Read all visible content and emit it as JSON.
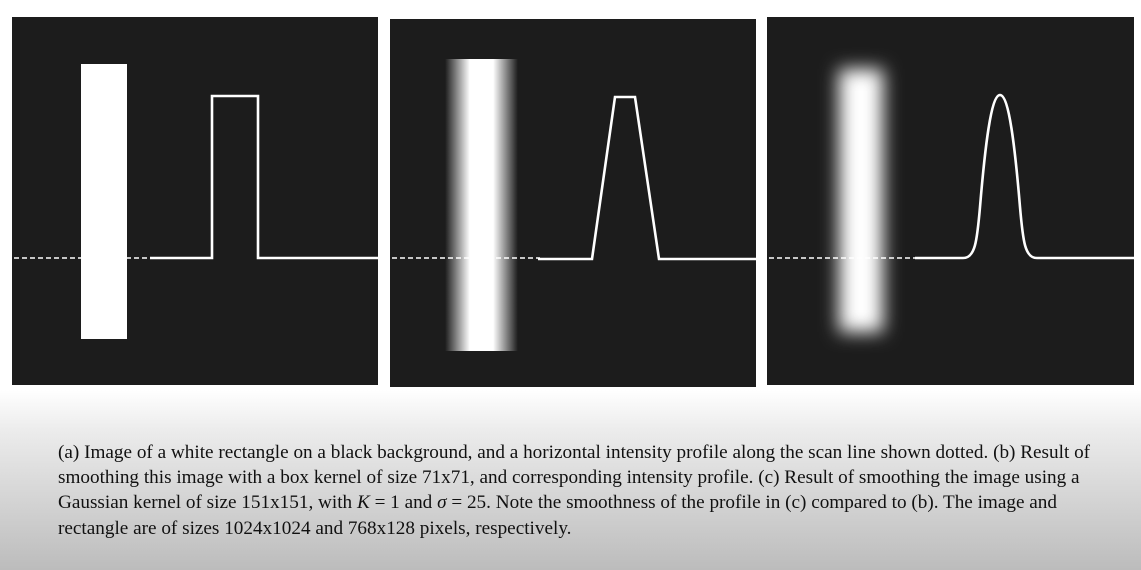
{
  "figure": {
    "panels": [
      {
        "id": "a",
        "description_key": "sharp rectangle",
        "profile": "step"
      },
      {
        "id": "b",
        "description_key": "box-smoothed rectangle",
        "profile": "trapezoid"
      },
      {
        "id": "c",
        "description_key": "gaussian-smoothed rectangle",
        "profile": "bell"
      }
    ],
    "colors": {
      "panel_background": "#1c1c1c",
      "foreground": "#ffffff"
    }
  },
  "caption": {
    "part1": "(a) Image of a white rectangle on a black background, and a horizontal intensity profile along the scan line shown dotted. (b) Result of smoothing this image with a box kernel of size 71x71, and corresponding intensity profile. (c) Result of smoothing the image using a Gaussian kernel of size 151x151, with ",
    "k_symbol": "K",
    "part2": " = 1 and ",
    "sigma_symbol": "σ",
    "part3": " = 25. Note the smoothness of the profile in (c) compared to (b). The image and rectangle are of sizes 1024x1024 and 768x128 pixels, respectively."
  }
}
